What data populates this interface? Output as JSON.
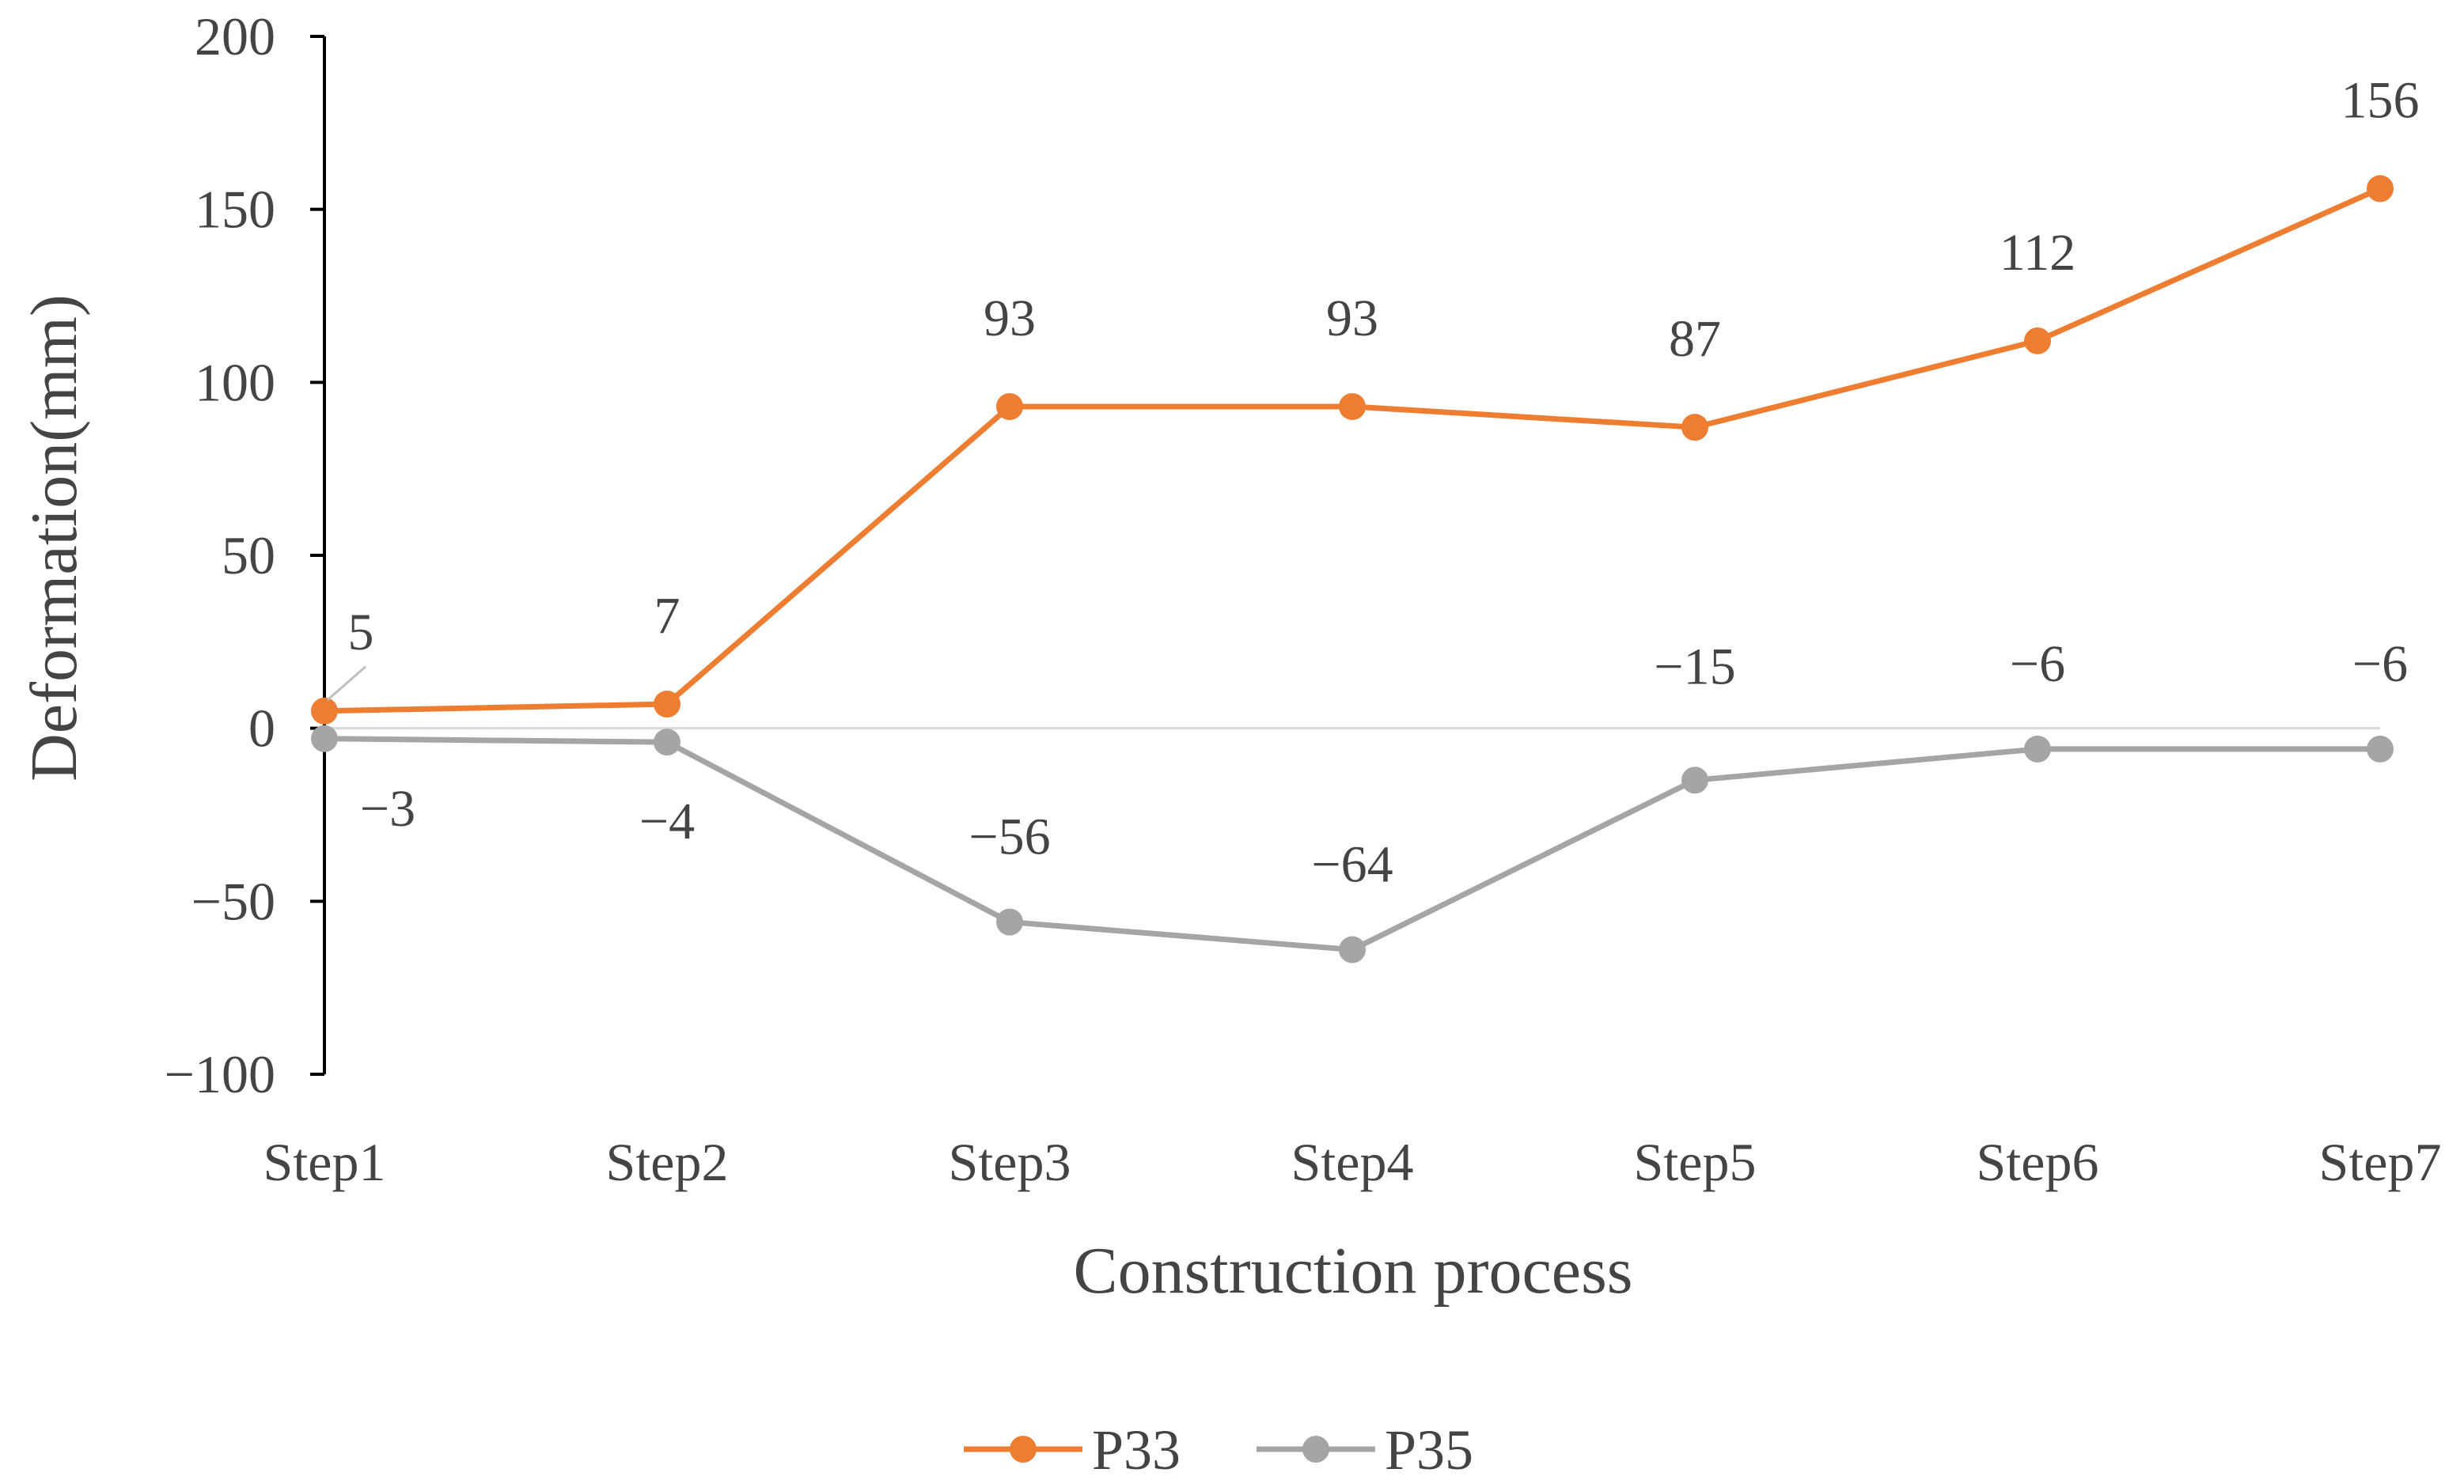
{
  "chart_data": {
    "type": "line",
    "title": "",
    "xlabel": "Construction process",
    "ylabel": "Deformation(mm)",
    "categories": [
      "Step1",
      "Step2",
      "Step3",
      "Step4",
      "Step5",
      "Step6",
      "Step7"
    ],
    "ylim": [
      -100,
      200
    ],
    "yticks": [
      -100,
      -50,
      0,
      50,
      100,
      150,
      200
    ],
    "ytick_labels": [
      "−100",
      "−50",
      "0",
      "50",
      "100",
      "150",
      "200"
    ],
    "grid": false,
    "legend_position": "bottom",
    "series": [
      {
        "name": "P33",
        "color": "#ED7D31",
        "values": [
          5,
          7,
          93,
          93,
          87,
          112,
          156
        ],
        "labels": [
          "5",
          "7",
          "93",
          "93",
          "87",
          "112",
          "156"
        ]
      },
      {
        "name": "P35",
        "color": "#A5A5A5",
        "values": [
          -3,
          -4,
          -56,
          -64,
          -15,
          -6,
          -6
        ],
        "labels": [
          "−3",
          "−4",
          "−56",
          "−64",
          "−15",
          "−6",
          "−6"
        ]
      }
    ]
  }
}
